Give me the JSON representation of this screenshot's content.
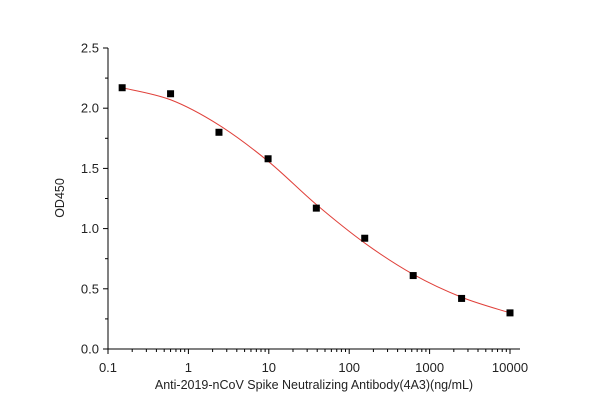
{
  "chart_data": {
    "type": "scatter",
    "title": "",
    "xlabel": "Anti-2019-nCoV Spike Neutralizing Antibody(4A3)(ng/mL)",
    "ylabel": "OD450",
    "x_scale": "log",
    "xlim": [
      0.1,
      10000
    ],
    "ylim": [
      0.0,
      2.5
    ],
    "x_ticks": [
      0.1,
      1,
      10,
      100,
      1000,
      10000
    ],
    "x_tick_labels": [
      "0.1",
      "1",
      "10",
      "100",
      "1000",
      "10000"
    ],
    "y_ticks": [
      0.0,
      0.5,
      1.0,
      1.5,
      2.0,
      2.5
    ],
    "y_tick_labels": [
      "0.0",
      "0.5",
      "1.0",
      "1.5",
      "2.0",
      "2.5"
    ],
    "grid": false,
    "legend": "none",
    "series": [
      {
        "marker": "square",
        "color": "#000000",
        "points": [
          {
            "x": 0.15,
            "y": 2.17
          },
          {
            "x": 0.6,
            "y": 2.12
          },
          {
            "x": 2.4,
            "y": 1.8
          },
          {
            "x": 9.8,
            "y": 1.58
          },
          {
            "x": 39,
            "y": 1.17
          },
          {
            "x": 156,
            "y": 0.92
          },
          {
            "x": 625,
            "y": 0.61
          },
          {
            "x": 2500,
            "y": 0.42
          },
          {
            "x": 10000,
            "y": 0.3
          }
        ]
      }
    ],
    "fit_curve": {
      "color": "#e0403a",
      "points": [
        {
          "x": 0.15,
          "y": 2.17
        },
        {
          "x": 0.6,
          "y": 2.07
        },
        {
          "x": 2.4,
          "y": 1.86
        },
        {
          "x": 9.8,
          "y": 1.56
        },
        {
          "x": 39,
          "y": 1.2
        },
        {
          "x": 156,
          "y": 0.88
        },
        {
          "x": 625,
          "y": 0.62
        },
        {
          "x": 2500,
          "y": 0.43
        },
        {
          "x": 10000,
          "y": 0.3
        }
      ]
    }
  }
}
